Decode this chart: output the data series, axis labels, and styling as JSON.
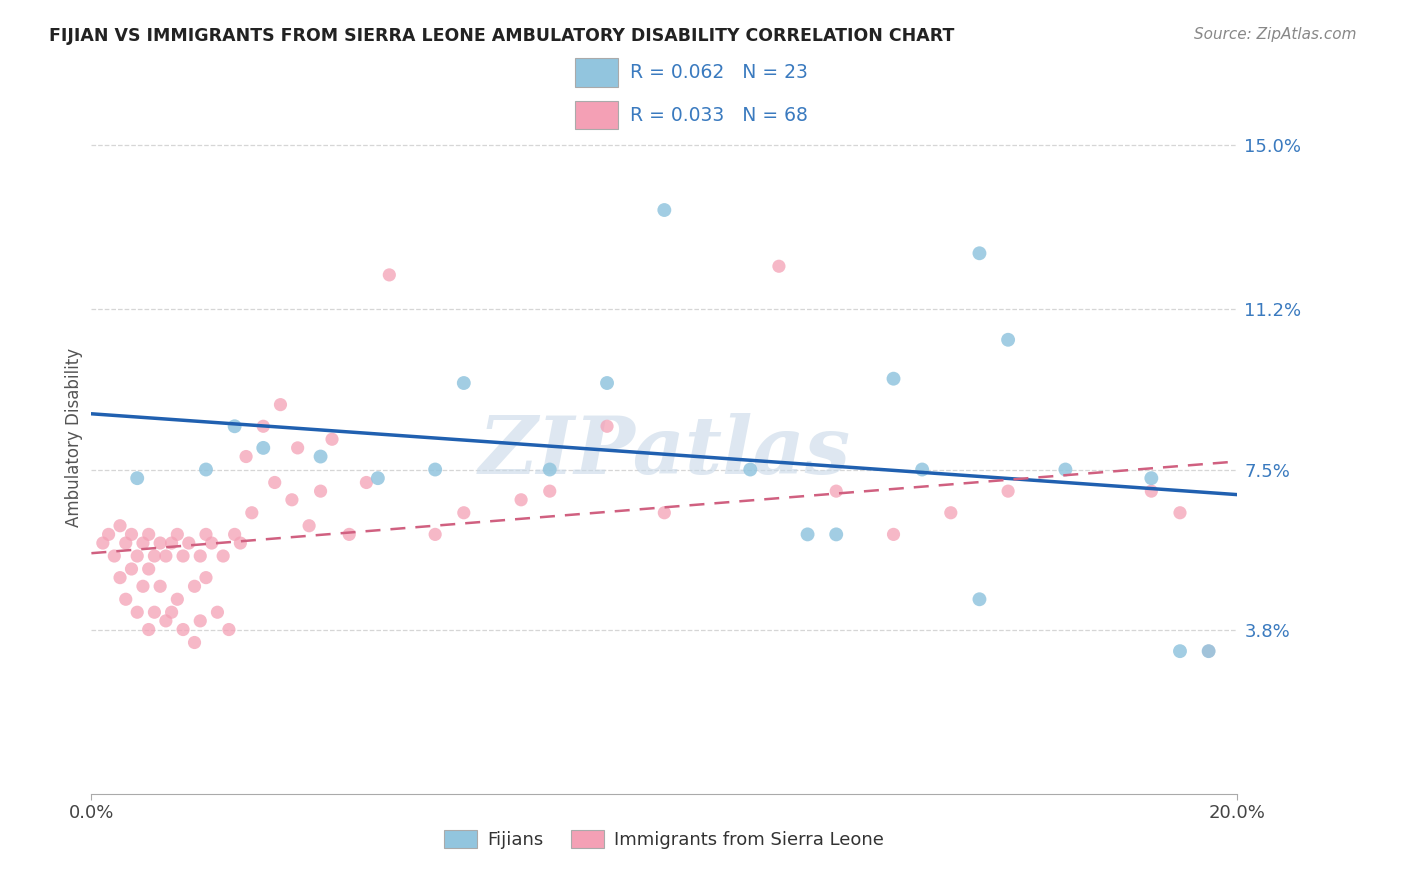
{
  "title": "FIJIAN VS IMMIGRANTS FROM SIERRA LEONE AMBULATORY DISABILITY CORRELATION CHART",
  "source": "Source: ZipAtlas.com",
  "ylabel": "Ambulatory Disability",
  "x_min": 0.0,
  "x_max": 0.2,
  "y_min": 0.0,
  "y_max": 0.165,
  "y_ticks": [
    0.038,
    0.075,
    0.112,
    0.15
  ],
  "y_tick_labels": [
    "3.8%",
    "7.5%",
    "11.2%",
    "15.0%"
  ],
  "legend_labels": [
    "Fijians",
    "Immigrants from Sierra Leone"
  ],
  "blue_R": "R = 0.062",
  "blue_N": "N = 23",
  "pink_R": "R = 0.033",
  "pink_N": "N = 68",
  "blue_color": "#92c5de",
  "pink_color": "#f4a0b5",
  "blue_line_color": "#2060b0",
  "pink_line_color": "#d06080",
  "background_color": "#ffffff",
  "grid_color": "#cccccc",
  "blue_dots_x": [
    0.008,
    0.02,
    0.025,
    0.03,
    0.04,
    0.05,
    0.06,
    0.065,
    0.09,
    0.1,
    0.115,
    0.13,
    0.145,
    0.155,
    0.16,
    0.185,
    0.19,
    0.195,
    0.08,
    0.155,
    0.125,
    0.14,
    0.17
  ],
  "blue_dots_y": [
    0.073,
    0.075,
    0.085,
    0.08,
    0.078,
    0.073,
    0.075,
    0.095,
    0.095,
    0.135,
    0.075,
    0.06,
    0.075,
    0.045,
    0.105,
    0.073,
    0.033,
    0.033,
    0.075,
    0.125,
    0.06,
    0.096,
    0.075
  ],
  "pink_dots_x": [
    0.002,
    0.003,
    0.004,
    0.005,
    0.005,
    0.006,
    0.006,
    0.007,
    0.007,
    0.008,
    0.008,
    0.009,
    0.009,
    0.01,
    0.01,
    0.01,
    0.011,
    0.011,
    0.012,
    0.012,
    0.013,
    0.013,
    0.014,
    0.014,
    0.015,
    0.015,
    0.016,
    0.016,
    0.017,
    0.018,
    0.018,
    0.019,
    0.019,
    0.02,
    0.02,
    0.021,
    0.022,
    0.023,
    0.024,
    0.025,
    0.026,
    0.027,
    0.028,
    0.03,
    0.032,
    0.033,
    0.035,
    0.036,
    0.038,
    0.04,
    0.042,
    0.045,
    0.048,
    0.052,
    0.06,
    0.065,
    0.075,
    0.08,
    0.09,
    0.1,
    0.12,
    0.13,
    0.14,
    0.15,
    0.16,
    0.185,
    0.19,
    0.195
  ],
  "pink_dots_y": [
    0.058,
    0.06,
    0.055,
    0.062,
    0.05,
    0.058,
    0.045,
    0.06,
    0.052,
    0.055,
    0.042,
    0.058,
    0.048,
    0.06,
    0.052,
    0.038,
    0.055,
    0.042,
    0.058,
    0.048,
    0.055,
    0.04,
    0.058,
    0.042,
    0.06,
    0.045,
    0.055,
    0.038,
    0.058,
    0.048,
    0.035,
    0.055,
    0.04,
    0.06,
    0.05,
    0.058,
    0.042,
    0.055,
    0.038,
    0.06,
    0.058,
    0.078,
    0.065,
    0.085,
    0.072,
    0.09,
    0.068,
    0.08,
    0.062,
    0.07,
    0.082,
    0.06,
    0.072,
    0.12,
    0.06,
    0.065,
    0.068,
    0.07,
    0.085,
    0.065,
    0.122,
    0.07,
    0.06,
    0.065,
    0.07,
    0.07,
    0.065,
    0.033
  ],
  "watermark": "ZIPatlas",
  "watermark_color": "#c8d8e8"
}
